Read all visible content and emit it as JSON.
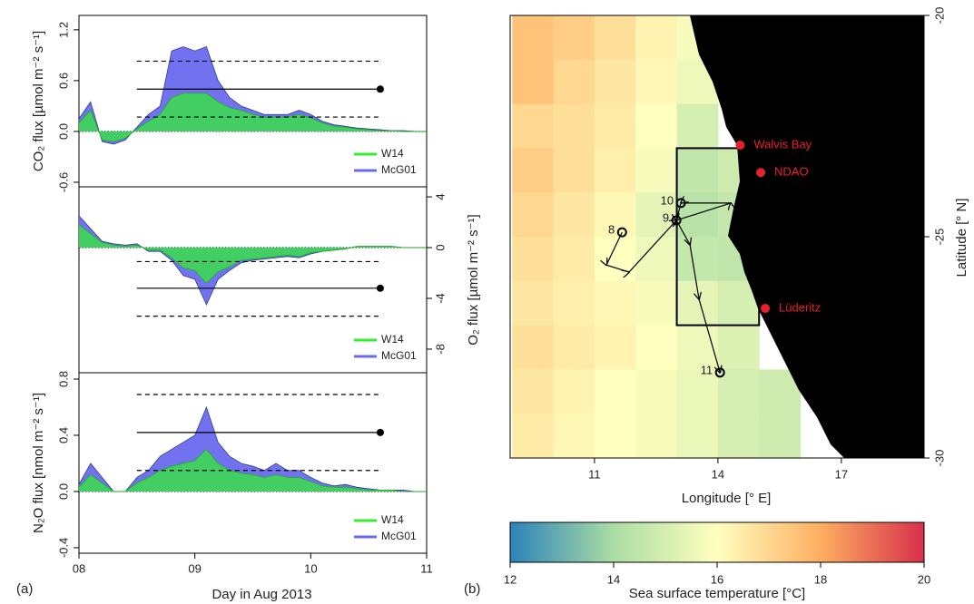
{
  "chart_data": [
    {
      "type": "area",
      "ylabel": "CO₂ flux [µmol  m⁻² s⁻¹]",
      "yaxis_side": "left",
      "legend": "lower right",
      "xlim": [
        8,
        11
      ],
      "ylim": [
        -0.654,
        1.37
      ],
      "yticks": [
        -0.6,
        {
          "value": 0,
          "label": "0.0"
        },
        0.6,
        1.2
      ],
      "x": [
        8.0,
        8.1,
        8.2,
        8.3,
        8.4,
        8.5,
        8.6,
        8.7,
        8.8,
        8.9,
        9.0,
        9.1,
        9.2,
        9.3,
        9.4,
        9.5,
        9.6,
        9.7,
        9.8,
        9.9,
        10.0,
        10.1,
        10.2,
        10.3,
        10.4,
        10.5,
        10.6,
        10.7,
        10.8,
        10.9,
        11.0
      ],
      "series": [
        {
          "name": "McG01",
          "color": "#6a6af0",
          "values": [
            0.15,
            0.35,
            -0.12,
            -0.15,
            -0.1,
            0.05,
            0.2,
            0.3,
            0.95,
            1.0,
            0.95,
            1.0,
            0.6,
            0.4,
            0.3,
            0.25,
            0.2,
            0.2,
            0.2,
            0.25,
            0.2,
            0.12,
            0.08,
            0.06,
            0.04,
            0.03,
            0.02,
            0.01,
            0.01,
            0.0,
            0.0
          ]
        },
        {
          "name": "W14",
          "color": "#33ee33",
          "values": [
            0.1,
            0.25,
            -0.1,
            -0.12,
            -0.08,
            0.03,
            0.12,
            0.2,
            0.4,
            0.45,
            0.45,
            0.45,
            0.35,
            0.28,
            0.25,
            0.2,
            0.17,
            0.17,
            0.17,
            0.2,
            0.16,
            0.1,
            0.06,
            0.05,
            0.03,
            0.02,
            0.01,
            0.01,
            0.0,
            0.0,
            0.0
          ]
        }
      ],
      "reference": {
        "x": [
          8.5,
          10.6
        ],
        "mean": 0.5,
        "upper": 0.83,
        "lower": 0.17
      }
    },
    {
      "type": "area",
      "ylabel": "O₂ flux [µmol  m⁻² s⁻¹]",
      "yaxis_side": "right",
      "legend": "lower right",
      "xlim": [
        8,
        11
      ],
      "ylim": [
        -9.86,
        4.79
      ],
      "yticks": [
        -8,
        -4,
        0,
        4
      ],
      "x": [
        8.0,
        8.1,
        8.2,
        8.3,
        8.4,
        8.5,
        8.6,
        8.7,
        8.8,
        8.9,
        9.0,
        9.1,
        9.2,
        9.3,
        9.4,
        9.5,
        9.6,
        9.7,
        9.8,
        9.9,
        10.0,
        10.1,
        10.2,
        10.3,
        10.4,
        10.5,
        10.6,
        10.7,
        10.8,
        10.9,
        11.0
      ],
      "series": [
        {
          "name": "McG01",
          "color": "#6a6af0",
          "values": [
            2.5,
            1.5,
            0.5,
            0.3,
            0.2,
            0.3,
            -0.3,
            -0.3,
            -1.0,
            -2.2,
            -2.5,
            -4.5,
            -2.5,
            -1.8,
            -1.2,
            -1.0,
            -0.9,
            -0.8,
            -0.7,
            -0.8,
            -0.5,
            -0.3,
            -0.2,
            -0.1,
            0.1,
            0.1,
            0.1,
            0.1,
            0.0,
            0.0,
            0.0
          ]
        },
        {
          "name": "W14",
          "color": "#33ee33",
          "values": [
            1.8,
            1.1,
            0.4,
            0.2,
            0.1,
            0.2,
            -0.2,
            -0.2,
            -0.8,
            -1.6,
            -1.8,
            -2.8,
            -1.9,
            -1.5,
            -1.0,
            -0.9,
            -0.8,
            -0.7,
            -0.6,
            -0.7,
            -0.4,
            -0.3,
            -0.2,
            -0.1,
            0.1,
            0.1,
            0.1,
            0.1,
            0.0,
            0.0,
            0.0
          ]
        }
      ],
      "reference": {
        "x": [
          8.5,
          10.6
        ],
        "mean": -3.2,
        "upper": -1.1,
        "lower": -5.4
      }
    },
    {
      "type": "area",
      "ylabel": "N₂O flux [nmol  m⁻² s⁻¹]",
      "yaxis_side": "left",
      "legend": "lower right",
      "xlabel": "Day in Aug 2013",
      "panel_label": "(a)",
      "xlim": [
        8,
        11
      ],
      "ylim": [
        -0.439,
        0.845
      ],
      "xticks": [
        {
          "value": 8,
          "label": "08"
        },
        {
          "value": 9,
          "label": "09"
        },
        10,
        11
      ],
      "yticks": [
        -0.4,
        {
          "value": 0,
          "label": "0.0"
        },
        0.4,
        0.8
      ],
      "x": [
        8.0,
        8.1,
        8.2,
        8.3,
        8.4,
        8.5,
        8.6,
        8.7,
        8.8,
        8.9,
        9.0,
        9.1,
        9.2,
        9.3,
        9.4,
        9.5,
        9.6,
        9.7,
        9.8,
        9.9,
        10.0,
        10.1,
        10.2,
        10.3,
        10.4,
        10.5,
        10.6,
        10.7,
        10.8,
        10.9,
        11.0
      ],
      "series": [
        {
          "name": "McG01",
          "color": "#6a6af0",
          "values": [
            0.05,
            0.2,
            0.1,
            0.0,
            0.0,
            0.1,
            0.15,
            0.25,
            0.3,
            0.35,
            0.4,
            0.6,
            0.35,
            0.25,
            0.2,
            0.18,
            0.15,
            0.2,
            0.15,
            0.15,
            0.1,
            0.06,
            0.04,
            0.05,
            0.03,
            0.02,
            0.01,
            0.01,
            0.01,
            0.0,
            0.0
          ]
        },
        {
          "name": "W14",
          "color": "#33ee33",
          "values": [
            0.03,
            0.12,
            0.06,
            0.0,
            0.0,
            0.06,
            0.1,
            0.15,
            0.18,
            0.2,
            0.22,
            0.3,
            0.2,
            0.15,
            0.13,
            0.12,
            0.1,
            0.12,
            0.1,
            0.1,
            0.07,
            0.04,
            0.03,
            0.03,
            0.02,
            0.01,
            0.01,
            0.01,
            0.0,
            0.0,
            0.0
          ]
        }
      ],
      "reference": {
        "x": [
          8.5,
          10.6
        ],
        "mean": 0.42,
        "upper": 0.69,
        "lower": 0.15
      }
    },
    {
      "type": "map",
      "xlabel": "Longitude [° E]",
      "ylabel": "Latitude [° N]",
      "panel_label": "(b)",
      "xlim": [
        8.95,
        19.01
      ],
      "ylim": [
        -30,
        -20
      ],
      "xticks": [
        11,
        14,
        17
      ],
      "yticks": [
        -30,
        -25,
        -20
      ],
      "sst": {
        "lon": [
          9,
          10,
          11,
          12,
          13,
          14,
          15,
          16,
          17,
          18,
          19
        ],
        "lat": [
          -20,
          -21,
          -22,
          -23,
          -24,
          -25,
          -26,
          -27,
          -28,
          -29,
          -30
        ],
        "values": [
          [
            17.5,
            17.2,
            16.8,
            16.3,
            15.8,
            null,
            null,
            null,
            null,
            null
          ],
          [
            17.5,
            17.0,
            16.6,
            16.2,
            15.6,
            null,
            null,
            null,
            null,
            null
          ],
          [
            17.0,
            16.8,
            16.5,
            16.0,
            15.0,
            null,
            null,
            null,
            null,
            null
          ],
          [
            17.2,
            16.8,
            16.4,
            15.8,
            14.5,
            14.8,
            null,
            null,
            null,
            null
          ],
          [
            17.0,
            16.6,
            16.2,
            15.4,
            14.3,
            14.6,
            null,
            null,
            null,
            null
          ],
          [
            16.8,
            16.5,
            16.0,
            15.6,
            14.6,
            14.5,
            null,
            null,
            null,
            null
          ],
          [
            16.6,
            16.4,
            16.2,
            15.8,
            15.4,
            15.0,
            null,
            null,
            null,
            null
          ],
          [
            16.8,
            16.5,
            16.3,
            16.0,
            15.6,
            15.2,
            null,
            null,
            null,
            null
          ],
          [
            16.6,
            16.3,
            16.0,
            15.8,
            15.5,
            15.0,
            14.8,
            null,
            null,
            null
          ],
          [
            16.5,
            16.2,
            16.0,
            15.8,
            15.5,
            15.0,
            14.8,
            null,
            null,
            null
          ]
        ]
      },
      "box": {
        "lon": [
          13,
          15
        ],
        "lat": [
          -23,
          -27
        ]
      },
      "track": {
        "lon": [
          11.67,
          11.29,
          11.84,
          12.99,
          14.31,
          13.1,
          12.99,
          13.32,
          13.54,
          14.05
        ],
        "lat": [
          -24.9,
          -25.64,
          -25.8,
          -24.63,
          -24.24,
          -24.24,
          -24.63,
          -25.18,
          -26.41,
          -28.07
        ]
      },
      "stations": [
        {
          "label": "8",
          "lon": 11.67,
          "lat": -24.9
        },
        {
          "label": "9",
          "lon": 12.99,
          "lat": -24.63
        },
        {
          "label": "10",
          "lon": 13.1,
          "lat": -24.24
        },
        {
          "label": "11",
          "lon": 14.05,
          "lat": -28.07
        }
      ],
      "places": [
        {
          "label": "Walvis Bay",
          "lon": 14.54,
          "lat": -22.93
        },
        {
          "label": "NDAO",
          "lon": 15.04,
          "lat": -23.55
        },
        {
          "label": "Lüderitz",
          "lon": 15.15,
          "lat": -26.62
        }
      ],
      "place_color": "#e8202a"
    },
    {
      "type": "colorbar",
      "title": "Sea surface temperature [°C]",
      "xlim": [
        12,
        20
      ],
      "xticks": [
        12,
        14,
        16,
        18,
        20
      ],
      "colors": [
        "#2b83ba",
        "#abdda4",
        "#ffffbf",
        "#fdae61",
        "#d7304a"
      ]
    }
  ]
}
